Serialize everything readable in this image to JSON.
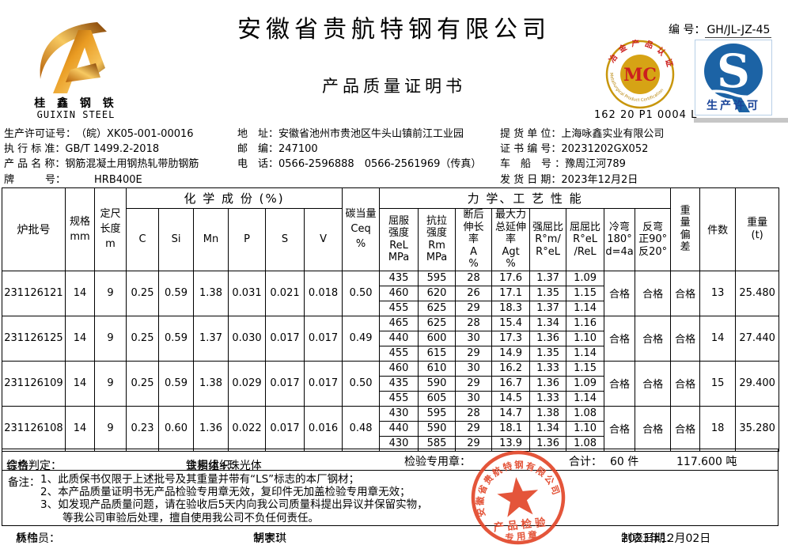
{
  "header": {
    "company": "安徽省贵航特钢有限公司",
    "doc_title": "产品质量证明书",
    "logo_cn": "桂 鑫 钢 铁",
    "logo_en": "GUIXIN STEEL",
    "serial_label": "编 号：",
    "serial_value": "GH/JL-JZ-45"
  },
  "certs": {
    "mc_abbr": "MC",
    "mc_ring_top": "冶金产品认证",
    "mc_ring_bottom": "Metallurgical Product Certification",
    "mc_code": "162 20 P1 0004 L",
    "qs_letter": "S",
    "qs_caption": "生产许可"
  },
  "info": {
    "left": [
      {
        "label": "生产许可证号：",
        "value": "（皖）XK05-001-00016"
      },
      {
        "label": "执 行 标 准：",
        "value": "GB/T 1499.2-2018"
      },
      {
        "label": "产 品 名 称：",
        "value": "钢筋混凝土用钢热轧带肋钢筋"
      },
      {
        "label": "牌　　　号：",
        "value": "HRB400E"
      }
    ],
    "middle": [
      {
        "label": "地　址：",
        "value": "安徽省池州市贵池区牛头山镇前江工业园"
      },
      {
        "label": "邮　编：",
        "value": "247100"
      },
      {
        "label": "电　话：",
        "value": "0566-2596888　0566-2561969（传真）"
      }
    ],
    "right": [
      {
        "label": "提 货 单 位：",
        "value": "上海咏鑫实业有限公司"
      },
      {
        "label": "证 书 编 号：",
        "value": "20231202GX052"
      },
      {
        "label": "车　船　号 ：",
        "value": "豫周江河789"
      },
      {
        "label": "发 货 日 期：",
        "value": "2023年12月2日"
      }
    ]
  },
  "table": {
    "thead": {
      "heat_no": "炉批号",
      "spec": "规格\nmm",
      "length": "定尺\n长度\nm",
      "chem_group": "化 学 成 份 (%)",
      "chem": [
        "C",
        "Si",
        "Mn",
        "P",
        "S",
        "V"
      ],
      "ceq": "碳当量\nCeq\n%",
      "mech_group": "力 学、工 艺 性 能",
      "rel": "屈服\n强度\nReL\nMPa",
      "rm": "抗拉\n强度\nRm\nMPa",
      "a": "断后\n伸长\n率\nA\n%",
      "agt": "最大力\n总延伸\n率\nAgt\n%",
      "qiangqubi": "强屈比\nR°m/\nR°eL",
      "ququbi": "屈屈比\nR°eL\n/ReL",
      "cold_bend": "冷弯\n180°\nd=4a",
      "reverse_bend": "反弯\n正90°\n反20°",
      "weight_dev": "重\n量\n偏\n差",
      "pieces": "件数",
      "weight": "重量\n(t)"
    },
    "rows": [
      {
        "heat_no": "231126121",
        "spec": "14",
        "length": "9",
        "chem": [
          "0.25",
          "0.59",
          "1.38",
          "0.031",
          "0.021",
          "0.018"
        ],
        "ceq": "0.50",
        "mech": [
          [
            "435",
            "595",
            "28",
            "17.6",
            "1.37",
            "1.09"
          ],
          [
            "460",
            "620",
            "26",
            "17.1",
            "1.35",
            "1.15"
          ],
          [
            "455",
            "625",
            "29",
            "18.3",
            "1.37",
            "1.14"
          ]
        ],
        "cold_bend": "合格",
        "reverse_bend": "合格",
        "weight_dev": "合格",
        "pieces": "13",
        "weight": "25.480"
      },
      {
        "heat_no": "231126125",
        "spec": "14",
        "length": "9",
        "chem": [
          "0.25",
          "0.59",
          "1.37",
          "0.030",
          "0.017",
          "0.017"
        ],
        "ceq": "0.49",
        "mech": [
          [
            "465",
            "625",
            "28",
            "15.4",
            "1.34",
            "1.16"
          ],
          [
            "440",
            "600",
            "30",
            "17.3",
            "1.36",
            "1.10"
          ],
          [
            "455",
            "615",
            "29",
            "14.9",
            "1.35",
            "1.14"
          ]
        ],
        "cold_bend": "合格",
        "reverse_bend": "合格",
        "weight_dev": "合格",
        "pieces": "14",
        "weight": "27.440"
      },
      {
        "heat_no": "231126109",
        "spec": "14",
        "length": "9",
        "chem": [
          "0.25",
          "0.59",
          "1.38",
          "0.029",
          "0.017",
          "0.017"
        ],
        "ceq": "0.50",
        "mech": [
          [
            "460",
            "610",
            "30",
            "16.2",
            "1.33",
            "1.15"
          ],
          [
            "435",
            "590",
            "29",
            "16.7",
            "1.36",
            "1.09"
          ],
          [
            "455",
            "605",
            "30",
            "14.5",
            "1.33",
            "1.14"
          ]
        ],
        "cold_bend": "合格",
        "reverse_bend": "合格",
        "weight_dev": "合格",
        "pieces": "15",
        "weight": "29.400"
      },
      {
        "heat_no": "231126108",
        "spec": "14",
        "length": "9",
        "chem": [
          "0.23",
          "0.60",
          "1.36",
          "0.022",
          "0.017",
          "0.016"
        ],
        "ceq": "0.48",
        "mech": [
          [
            "430",
            "595",
            "28",
            "14.7",
            "1.38",
            "1.08"
          ],
          [
            "440",
            "590",
            "29",
            "18.1",
            "1.34",
            "1.10"
          ],
          [
            "430",
            "585",
            "29",
            "13.9",
            "1.36",
            "1.08"
          ]
        ],
        "cold_bend": "合格",
        "reverse_bend": "合格",
        "weight_dev": "合格",
        "pieces": "18",
        "weight": "35.280"
      }
    ]
  },
  "summary": {
    "judgement_label": "综合判定：",
    "judgement": "合格",
    "structure_label": "金相组织：",
    "structure": "铁素体+珠光体",
    "stamp_label": "检验专用章：",
    "total_label": "合计：",
    "total_pieces": "60 件",
    "total_weight": "117.600  吨"
  },
  "notes": {
    "label": "备注：",
    "lines": [
      "1、此质保书仅限于上述批号及其重量并带有“LS”标志的本厂钢材；",
      "2、本产品质量证明书无产品检验专用章无效，复印件无加盖检验专用章无效；",
      "3、如发现产品质量问题，请在验收后5天内向我公司质量科提出异议并保留实物，",
      "等我公司审验后处理，擅自使用我公司不负任何责任。"
    ]
  },
  "footer": {
    "inspector_label": "质检员：",
    "inspector": "林伟",
    "tabulator_label": "制表：",
    "tabulator": "胡宇琪",
    "date_label": "制表日期：",
    "date": "2023年12月02日"
  },
  "seal": {
    "company": "安徽省贵航特钢有限公司",
    "line1": "产品检验",
    "line2": "专用章"
  },
  "colors": {
    "seal_red": "#e2472a",
    "mc_gold": "#c8960c",
    "mc_disc": "#d6a315",
    "mc_red": "#cc1f1f",
    "qs_blue": "#1c63a5",
    "qs_text_blue": "#1a4499",
    "logo_gold_dark": "#7a3c00",
    "logo_gold_light": "#f2b23c"
  }
}
